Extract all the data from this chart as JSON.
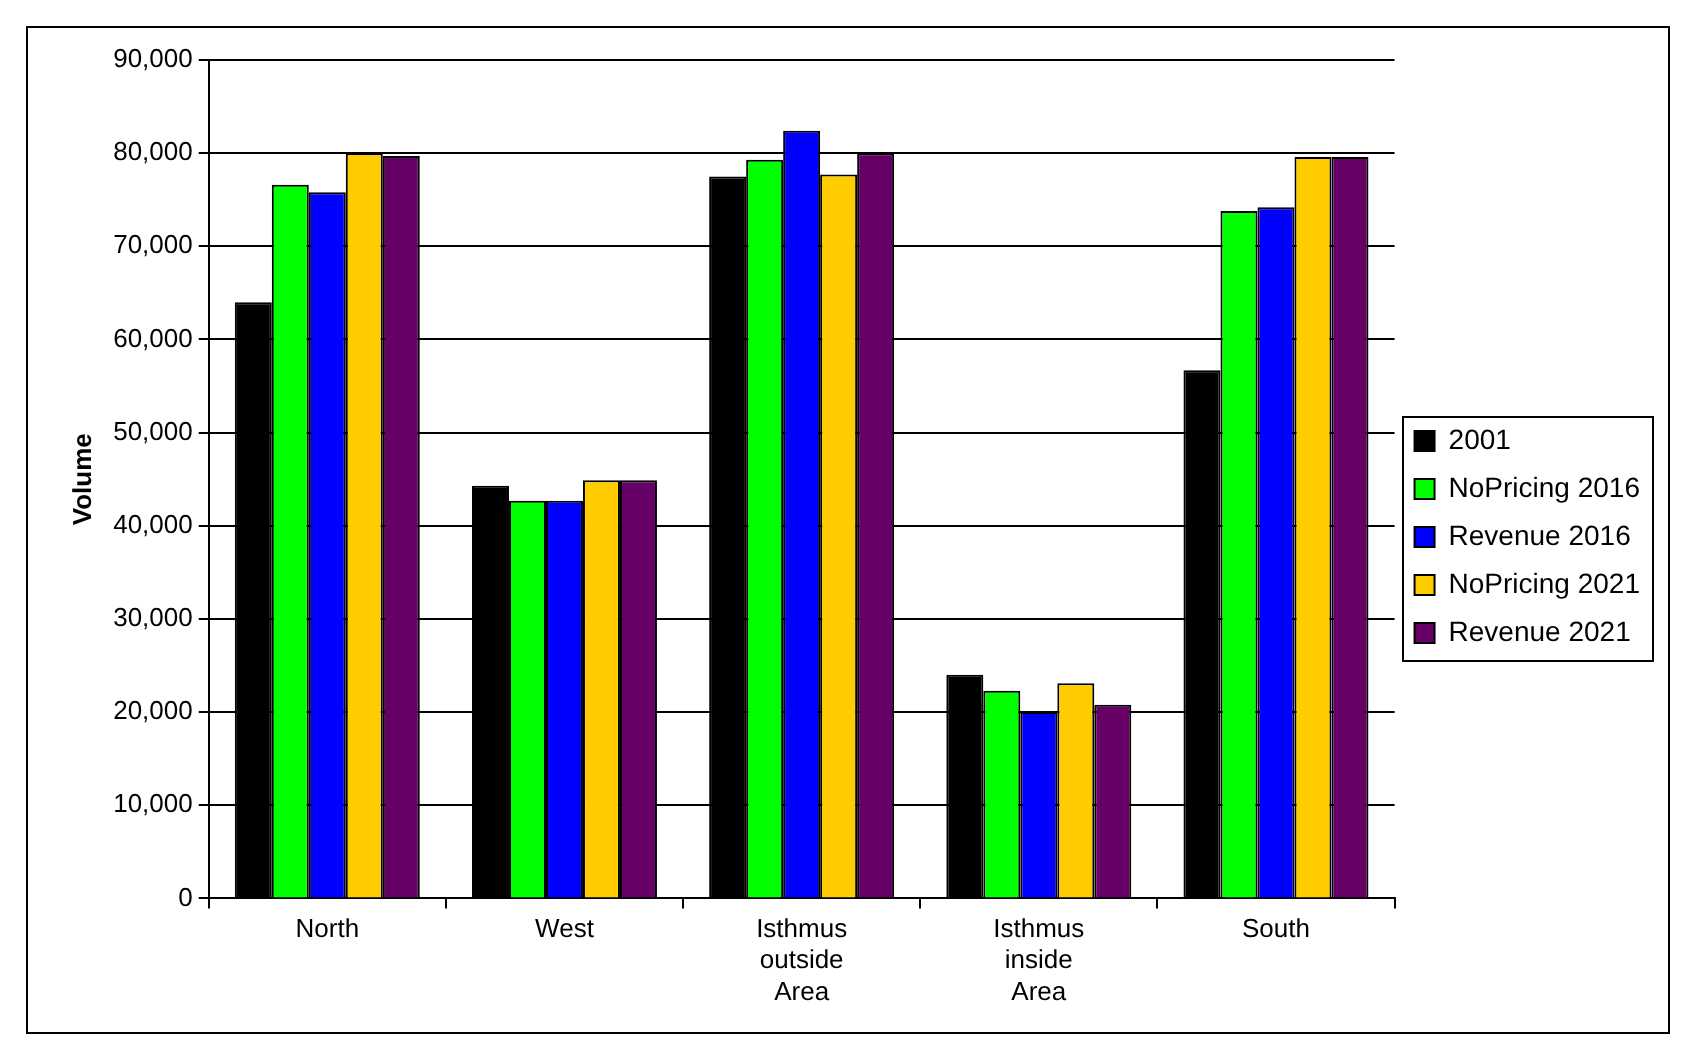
{
  "chart_data": {
    "type": "bar",
    "ylabel": "Volume",
    "categories": [
      "North",
      "West",
      "Isthmus outside Area",
      "Isthmus inside Area",
      "South"
    ],
    "series": [
      {
        "name": "2001",
        "color": "#000000",
        "values": [
          64000,
          44300,
          77500,
          24000,
          56700
        ]
      },
      {
        "name": "NoPricing 2016",
        "color": "#00ff00",
        "values": [
          76600,
          42700,
          79300,
          22300,
          73800
        ]
      },
      {
        "name": "Revenue 2016",
        "color": "#0000ff",
        "values": [
          75800,
          42700,
          82400,
          20000,
          74200
        ]
      },
      {
        "name": "NoPricing 2021",
        "color": "#ffcc00",
        "values": [
          80000,
          44900,
          77700,
          23100,
          79600
        ]
      },
      {
        "name": "Revenue 2021",
        "color": "#660066",
        "values": [
          79700,
          44900,
          80000,
          20800,
          79600
        ]
      }
    ],
    "ylim": [
      0,
      90000
    ],
    "yticks": [
      0,
      {
        "value": 10000,
        "label": "10,000"
      },
      {
        "value": 20000,
        "label": "20,000"
      },
      {
        "value": 30000,
        "label": "30,000"
      },
      {
        "value": 40000,
        "label": "40,000"
      },
      {
        "value": 50000,
        "label": "50,000"
      },
      {
        "value": 60000,
        "label": "60,000"
      },
      {
        "value": 70000,
        "label": "70,000"
      },
      {
        "value": 80000,
        "label": "80,000"
      },
      {
        "value": 90000,
        "label": "90,000"
      }
    ],
    "grid": "y",
    "legend": "right"
  }
}
